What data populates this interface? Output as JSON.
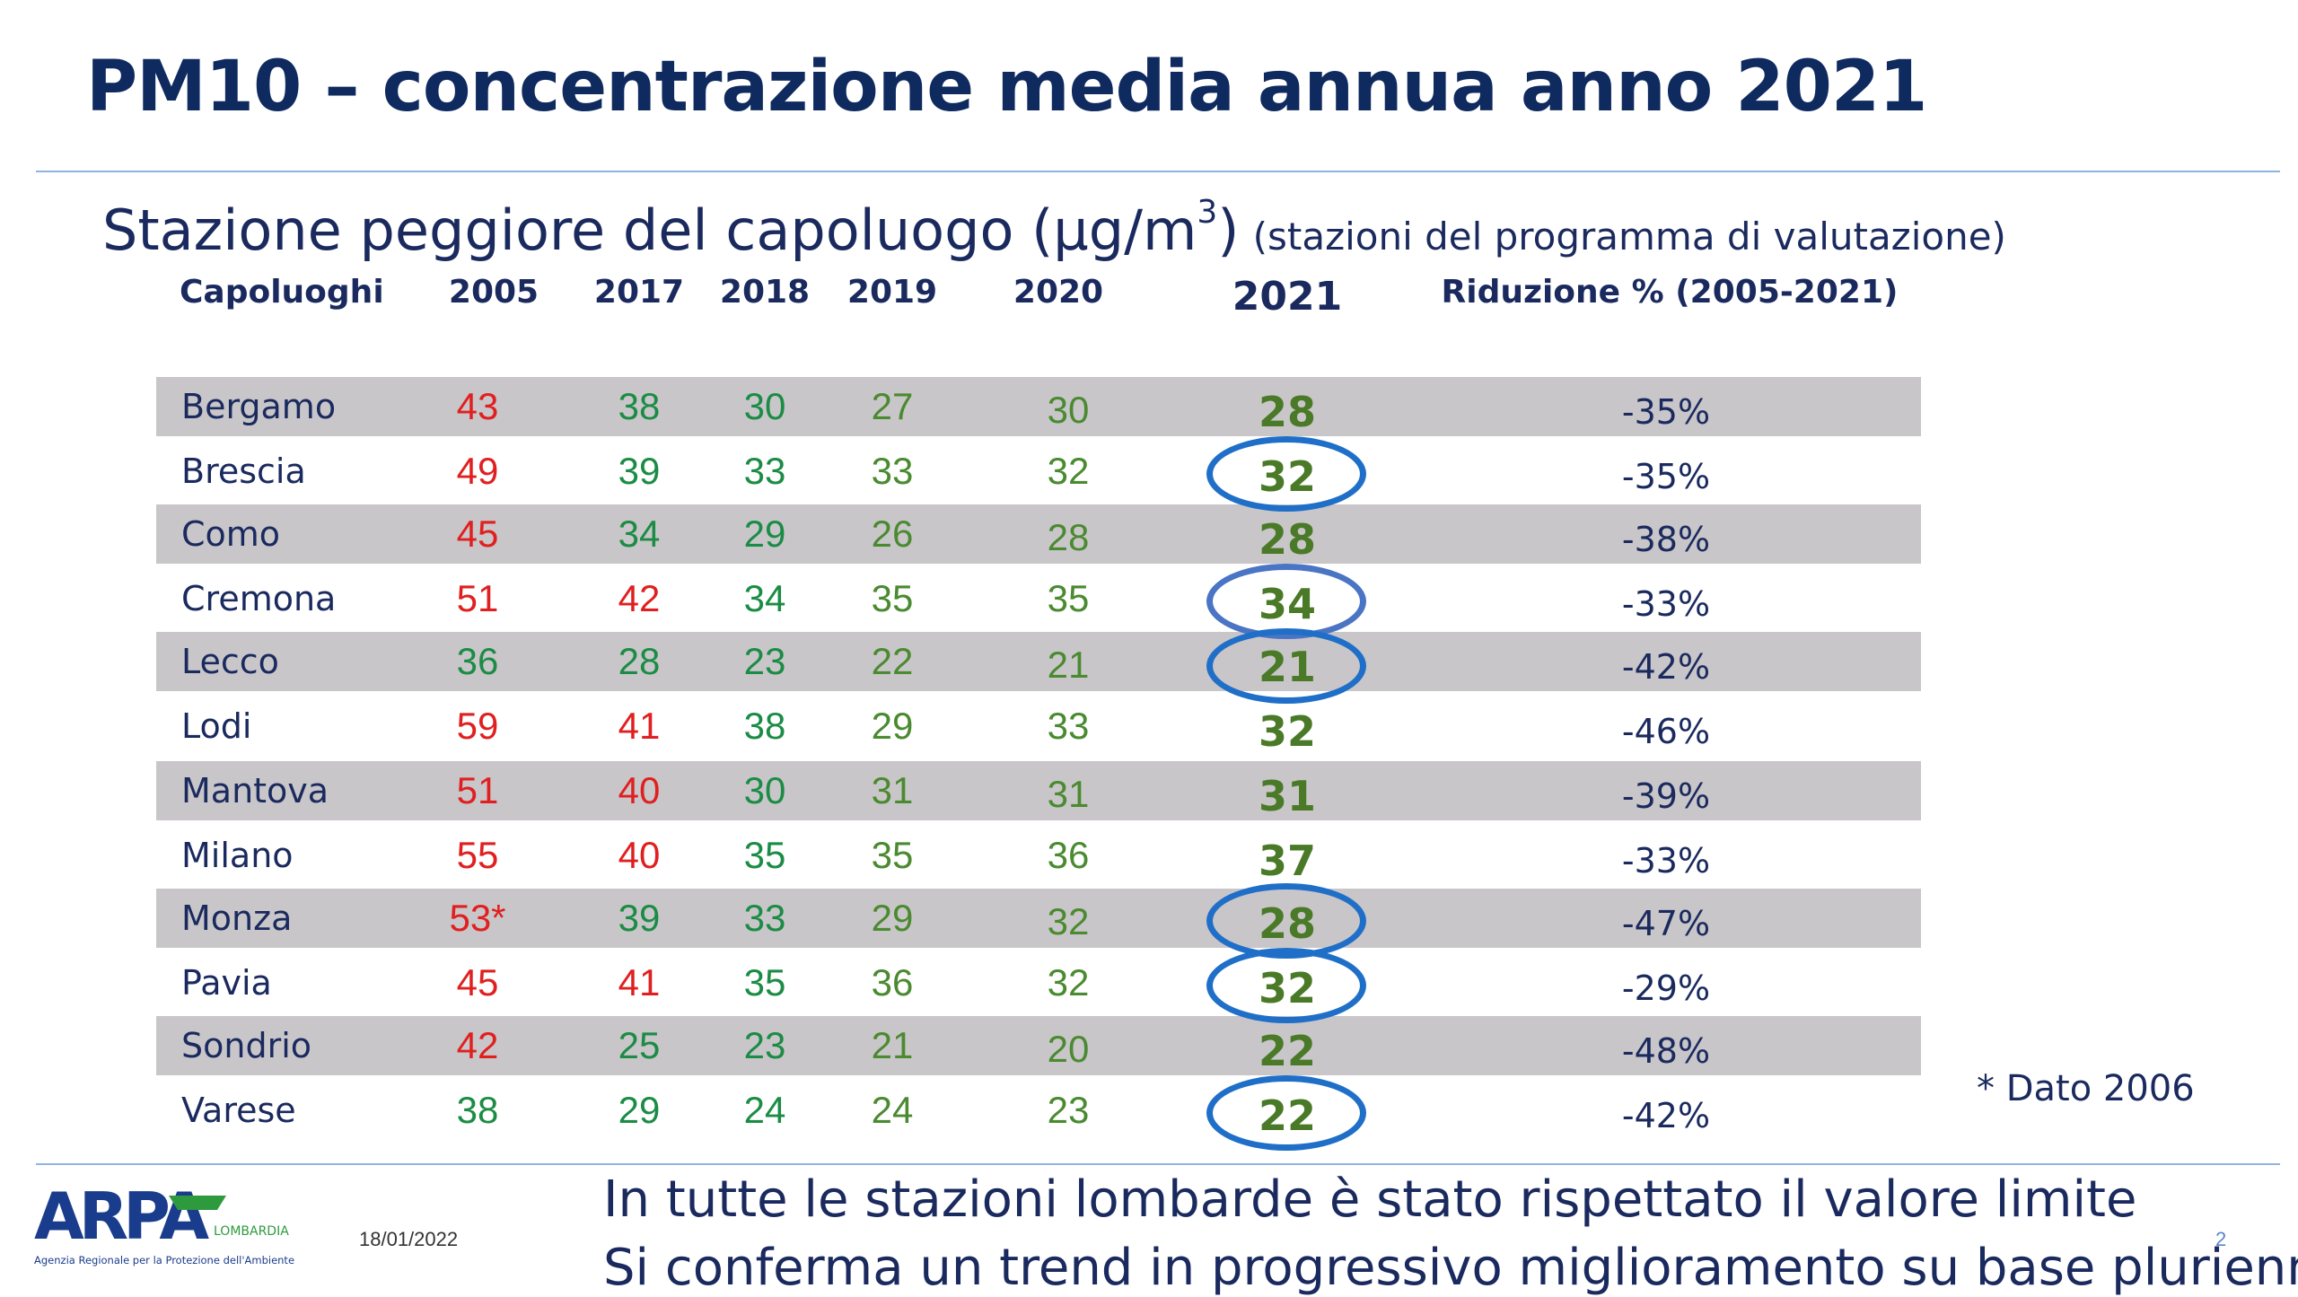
{
  "slide": {
    "title": "PM10 – concentrazione media annua anno 2021",
    "subtitle_main": "Stazione peggiore del capoluogo (µg/m",
    "subtitle_sup": "3",
    "subtitle_close": ")",
    "subtitle_note": "(stazioni del programma di valutazione)",
    "footnote": "* Dato 2006",
    "conclusion_1": "In tutte le stazioni lombarde è stato rispettato il valore limite",
    "conclusion_2": "Si conferma un trend in progressivo miglioramento su base pluriennale",
    "date": "18/01/2022",
    "page_number": "2"
  },
  "logo": {
    "text": "ARPA",
    "region": "LOMBARDIA",
    "caption": "Agenzia Regionale per la Protezione dell'Ambiente",
    "colors": {
      "blue": "#1a3c8c",
      "green": "#2e9a3e"
    }
  },
  "table": {
    "headers": {
      "city": "Capoluoghi",
      "y2005": "2005",
      "y2017": "2017",
      "y2018": "2018",
      "y2019": "2019",
      "y2020": "2020",
      "y2021": "2021",
      "reduction": "Riduzione % (2005-2021)"
    },
    "rows": [
      {
        "city": "Bergamo",
        "y2005": "43",
        "y2017": "38",
        "y2018": "30",
        "y2019": "27",
        "y2020": "30",
        "y2021": "28",
        "reduction": "-35%"
      },
      {
        "city": "Brescia",
        "y2005": "49",
        "y2017": "39",
        "y2018": "33",
        "y2019": "33",
        "y2020": "32",
        "y2021": "32",
        "reduction": "-35%"
      },
      {
        "city": "Como",
        "y2005": "45",
        "y2017": "34",
        "y2018": "29",
        "y2019": "26",
        "y2020": "28",
        "y2021": "28",
        "reduction": "-38%"
      },
      {
        "city": "Cremona",
        "y2005": "51",
        "y2017": "42",
        "y2018": "34",
        "y2019": "35",
        "y2020": "35",
        "y2021": "34",
        "reduction": "-33%"
      },
      {
        "city": "Lecco",
        "y2005": "36",
        "y2017": "28",
        "y2018": "23",
        "y2019": "22",
        "y2020": "21",
        "y2021": "21",
        "reduction": "-42%"
      },
      {
        "city": "Lodi",
        "y2005": "59",
        "y2017": "41",
        "y2018": "38",
        "y2019": "29",
        "y2020": "33",
        "y2021": "32",
        "reduction": "-46%"
      },
      {
        "city": "Mantova",
        "y2005": "51",
        "y2017": "40",
        "y2018": "30",
        "y2019": "31",
        "y2020": "31",
        "y2021": "31",
        "reduction": "-39%"
      },
      {
        "city": "Milano",
        "y2005": "55",
        "y2017": "40",
        "y2018": "35",
        "y2019": "35",
        "y2020": "36",
        "y2021": "37",
        "reduction": "-33%"
      },
      {
        "city": "Monza",
        "y2005": "53*",
        "y2017": "39",
        "y2018": "33",
        "y2019": "29",
        "y2020": "32",
        "y2021": "28",
        "reduction": "-47%"
      },
      {
        "city": "Pavia",
        "y2005": "45",
        "y2017": "41",
        "y2018": "35",
        "y2019": "36",
        "y2020": "32",
        "y2021": "32",
        "reduction": "-29%"
      },
      {
        "city": "Sondrio",
        "y2005": "42",
        "y2017": "25",
        "y2018": "23",
        "y2019": "21",
        "y2020": "20",
        "y2021": "22",
        "reduction": "-48%"
      },
      {
        "city": "Varese",
        "y2005": "38",
        "y2017": "29",
        "y2018": "24",
        "y2019": "24",
        "y2020": "23",
        "y2021": "22",
        "reduction": "-42%"
      }
    ]
  },
  "colors": {
    "title": "#0f2a5f",
    "text": "#1a2a5e",
    "red": "#e02020",
    "green_dark": "#1b8c45",
    "green_mid": "#4a8a30",
    "green_2021": "#4a7a28",
    "row_shade": "#c9c6c9",
    "ring": "#1f6fc8"
  }
}
